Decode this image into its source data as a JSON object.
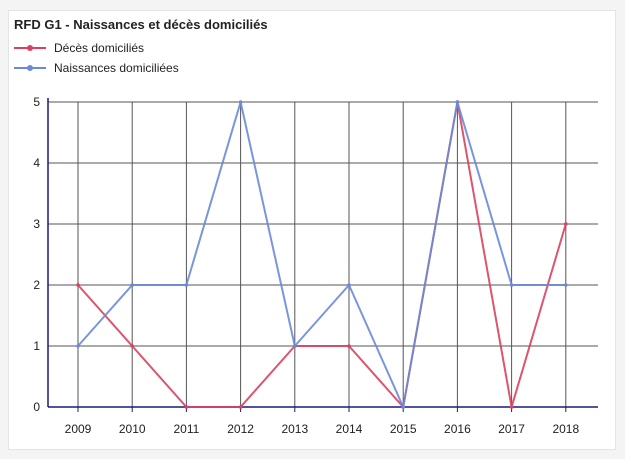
{
  "chart_data": {
    "type": "line",
    "title": "RFD G1 - Naissances et décès domiciliés",
    "categories": [
      "2009",
      "2010",
      "2011",
      "2012",
      "2013",
      "2014",
      "2015",
      "2016",
      "2017",
      "2018"
    ],
    "series": [
      {
        "name": "Décès domiciliés",
        "color": "#d9415e",
        "values": [
          2,
          1,
          0,
          0,
          1,
          1,
          0,
          5,
          0,
          3
        ]
      },
      {
        "name": "Naissances domiciliées",
        "color": "#6a8ad9",
        "values": [
          1,
          2,
          2,
          5,
          1,
          2,
          0,
          5,
          2,
          2
        ]
      }
    ],
    "ylim": [
      0,
      5
    ],
    "yticks": [
      "0",
      "1",
      "2",
      "3",
      "4",
      "5"
    ],
    "xlabel": "",
    "ylabel": "",
    "grid": true,
    "legend_position": "top-left",
    "grid_color": "#555555",
    "axis_color": "#1a1a7a"
  }
}
